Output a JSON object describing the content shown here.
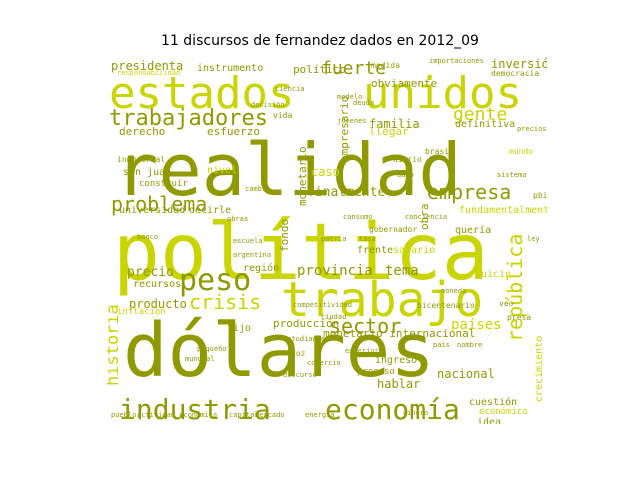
{
  "title": "11 discursos de fernandez dados en 2012_09",
  "palette": {
    "olive": "#8f9a00",
    "lime": "#c9d400",
    "background": "#ffffff"
  },
  "words": [
    {
      "text": "realidad",
      "color": "olive"
    },
    {
      "text": "política",
      "color": "lime"
    },
    {
      "text": "dólares",
      "color": "olive"
    },
    {
      "text": "estados",
      "color": "lime"
    },
    {
      "text": "unidos",
      "color": "lime"
    },
    {
      "text": "trabajo",
      "color": "lime"
    },
    {
      "text": "industria",
      "color": "olive"
    },
    {
      "text": "economía",
      "color": "olive"
    },
    {
      "text": "trabajadores",
      "color": "olive"
    },
    {
      "text": "peso",
      "color": "olive"
    },
    {
      "text": "república",
      "color": "lime"
    },
    {
      "text": "empresa",
      "color": "olive"
    },
    {
      "text": "problema",
      "color": "olive"
    },
    {
      "text": "sector",
      "color": "olive"
    },
    {
      "text": "crisis",
      "color": "lime"
    },
    {
      "text": "fuerte",
      "color": "olive"
    },
    {
      "text": "gente",
      "color": "lime"
    },
    {
      "text": "historia",
      "color": "lime"
    },
    {
      "text": "provincia",
      "color": "olive"
    },
    {
      "text": "tema",
      "color": "olive"
    },
    {
      "text": "presidenta",
      "color": "olive"
    },
    {
      "text": "finalmente",
      "color": "olive"
    },
    {
      "text": "inversión",
      "color": "olive"
    },
    {
      "text": "precio",
      "color": "olive"
    },
    {
      "text": "familia",
      "color": "olive"
    },
    {
      "text": "instrumento",
      "color": "olive"
    },
    {
      "text": "político",
      "color": "olive"
    },
    {
      "text": "obviamente",
      "color": "olive"
    },
    {
      "text": "derecho",
      "color": "olive"
    },
    {
      "text": "esfuerzo",
      "color": "olive"
    },
    {
      "text": "definitiva",
      "color": "olive"
    },
    {
      "text": "empresario",
      "color": "olive"
    },
    {
      "text": "monetario",
      "color": "olive"
    },
    {
      "text": "fondo",
      "color": "olive"
    },
    {
      "text": "universidad",
      "color": "olive"
    },
    {
      "text": "decirle",
      "color": "olive"
    },
    {
      "text": "región",
      "color": "olive"
    },
    {
      "text": "producto",
      "color": "olive"
    },
    {
      "text": "recursos",
      "color": "olive"
    },
    {
      "text": "inflación",
      "color": "lime"
    },
    {
      "text": "producción",
      "color": "olive"
    },
    {
      "text": "monetario internacional",
      "color": "olive"
    },
    {
      "text": "países",
      "color": "lime"
    },
    {
      "text": "crecimiento",
      "color": "lime"
    },
    {
      "text": "nacional",
      "color": "olive"
    },
    {
      "text": "hablar",
      "color": "olive"
    },
    {
      "text": "fundamentalmente",
      "color": "lime"
    },
    {
      "text": "obra",
      "color": "olive"
    },
    {
      "text": "san juan",
      "color": "olive"
    },
    {
      "text": "llegar",
      "color": "lime"
    },
    {
      "text": "caso",
      "color": "lime"
    },
    {
      "text": "ingreso",
      "color": "olive"
    },
    {
      "text": "cuestión",
      "color": "olive"
    },
    {
      "text": "proceso",
      "color": "olive"
    },
    {
      "text": "económico",
      "color": "lime"
    },
    {
      "text": "idea",
      "color": "olive"
    },
    {
      "text": "fijo",
      "color": "olive"
    },
    {
      "text": "juicio",
      "color": "lime"
    },
    {
      "text": "quería",
      "color": "olive"
    },
    {
      "text": "salario",
      "color": "lime"
    },
    {
      "text": "frente",
      "color": "olive"
    },
    {
      "text": "construir",
      "color": "olive"
    },
    {
      "text": "nivel",
      "color": "lime"
    },
    {
      "text": "medida",
      "color": "olive"
    },
    {
      "text": "democracia",
      "color": "olive"
    },
    {
      "text": "importaciones",
      "color": "olive"
    },
    {
      "text": "vida",
      "color": "olive"
    },
    {
      "text": "mundo",
      "color": "lime"
    },
    {
      "text": "pbi",
      "color": "olive"
    },
    {
      "text": "diario",
      "color": "olive"
    },
    {
      "text": "brasil",
      "color": "olive"
    },
    {
      "text": "bicentenario",
      "color": "olive"
    },
    {
      "text": "gobernador",
      "color": "olive"
    },
    {
      "text": "patria",
      "color": "olive"
    },
    {
      "text": "consumo",
      "color": "olive"
    },
    {
      "text": "conciencia",
      "color": "olive"
    },
    {
      "text": "presa",
      "color": "olive"
    },
    {
      "text": "veo",
      "color": "olive"
    },
    {
      "text": "decisión",
      "color": "olive"
    },
    {
      "text": "modelo",
      "color": "olive"
    },
    {
      "text": "ciudad",
      "color": "olive"
    },
    {
      "text": "estudiante",
      "color": "olive"
    },
    {
      "text": "pequeño",
      "color": "olive"
    },
    {
      "text": "competitividad",
      "color": "olive"
    },
    {
      "text": "actividad económica",
      "color": "olive"
    },
    {
      "text": "responsabilidad",
      "color": "lime"
    },
    {
      "text": "sistema",
      "color": "olive"
    },
    {
      "text": "dato",
      "color": "olive"
    },
    {
      "text": "cambio",
      "color": "olive"
    },
    {
      "text": "dinero",
      "color": "olive"
    },
    {
      "text": "energía",
      "color": "olive"
    },
    {
      "text": "mercado",
      "color": "olive"
    },
    {
      "text": "industrial",
      "color": "olive"
    },
    {
      "text": "banco",
      "color": "olive"
    },
    {
      "text": "discurso",
      "color": "olive"
    },
    {
      "text": "ley",
      "color": "olive"
    },
    {
      "text": "argentina",
      "color": "olive"
    },
    {
      "text": "mundial",
      "color": "olive"
    },
    {
      "text": "jóvenes",
      "color": "olive"
    },
    {
      "text": "moneda",
      "color": "olive"
    },
    {
      "text": "capital",
      "color": "olive"
    },
    {
      "text": "pueblo",
      "color": "olive"
    },
    {
      "text": "voz",
      "color": "olive"
    },
    {
      "text": "pais",
      "color": "olive"
    },
    {
      "text": "nombre",
      "color": "olive"
    },
    {
      "text": "comercio",
      "color": "olive"
    },
    {
      "text": "exterior",
      "color": "olive"
    },
    {
      "text": "tasa",
      "color": "olive"
    },
    {
      "text": "obras",
      "color": "olive"
    },
    {
      "text": "escuela",
      "color": "olive"
    },
    {
      "text": "deuda",
      "color": "olive"
    },
    {
      "text": "precios",
      "color": "olive"
    },
    {
      "text": "ciencia",
      "color": "olive"
    }
  ]
}
